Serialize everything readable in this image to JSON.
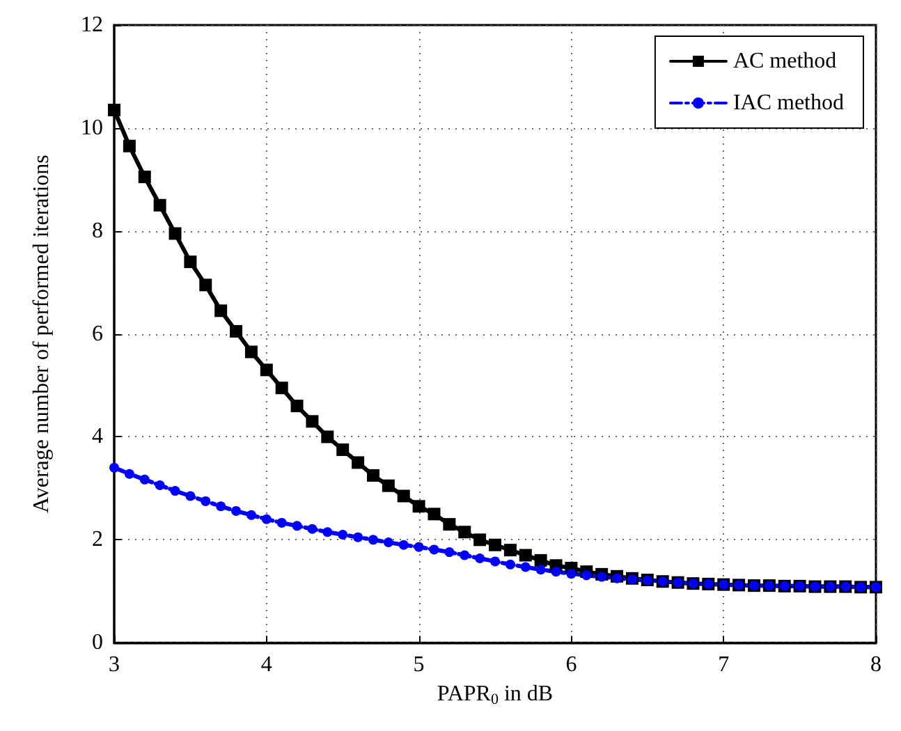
{
  "chart_data": {
    "type": "line",
    "xlabel": "PAPR$_{0}$ in dB",
    "ylabel": "Average number of performed iterations",
    "x": [
      3.0,
      3.1,
      3.2,
      3.3,
      3.4,
      3.5,
      3.6,
      3.7,
      3.8,
      3.9,
      4.0,
      4.1,
      4.2,
      4.3,
      4.4,
      4.5,
      4.6,
      4.7,
      4.8,
      4.9,
      5.0,
      5.1,
      5.2,
      5.3,
      5.4,
      5.5,
      5.6,
      5.7,
      5.8,
      5.9,
      6.0,
      6.1,
      6.2,
      6.3,
      6.4,
      6.5,
      6.6,
      6.7,
      6.8,
      6.9,
      7.0,
      7.1,
      7.2,
      7.3,
      7.4,
      7.5,
      7.6,
      7.7,
      7.8,
      7.9,
      8.0
    ],
    "series": [
      {
        "name": "AC method",
        "color": "#000000",
        "marker": "square",
        "line_style": "solid",
        "values": [
          10.35,
          9.65,
          9.05,
          8.5,
          7.95,
          7.4,
          6.95,
          6.45,
          6.05,
          5.65,
          5.3,
          4.95,
          4.6,
          4.3,
          4.0,
          3.75,
          3.5,
          3.25,
          3.05,
          2.85,
          2.65,
          2.5,
          2.3,
          2.15,
          2.0,
          1.9,
          1.8,
          1.7,
          1.6,
          1.5,
          1.45,
          1.38,
          1.33,
          1.29,
          1.25,
          1.22,
          1.19,
          1.17,
          1.15,
          1.14,
          1.13,
          1.12,
          1.11,
          1.11,
          1.1,
          1.1,
          1.09,
          1.09,
          1.09,
          1.08,
          1.08
        ]
      },
      {
        "name": "IAC method",
        "color": "#0000ff",
        "marker": "circle",
        "line_style": "dashdot",
        "values": [
          3.4,
          3.28,
          3.17,
          3.06,
          2.95,
          2.85,
          2.75,
          2.65,
          2.56,
          2.48,
          2.4,
          2.33,
          2.27,
          2.21,
          2.15,
          2.1,
          2.05,
          2.0,
          1.95,
          1.9,
          1.86,
          1.81,
          1.76,
          1.7,
          1.64,
          1.58,
          1.52,
          1.47,
          1.42,
          1.38,
          1.34,
          1.31,
          1.28,
          1.25,
          1.23,
          1.21,
          1.19,
          1.17,
          1.15,
          1.14,
          1.13,
          1.12,
          1.11,
          1.11,
          1.1,
          1.1,
          1.09,
          1.09,
          1.09,
          1.08,
          1.08
        ]
      }
    ],
    "xlim": [
      3,
      8
    ],
    "xticks": [
      3,
      4,
      5,
      6,
      7,
      8
    ],
    "ylim": [
      0,
      12
    ],
    "yticks": [
      0,
      2,
      4,
      6,
      8,
      10,
      12
    ],
    "grid": true,
    "legend": "top right"
  }
}
